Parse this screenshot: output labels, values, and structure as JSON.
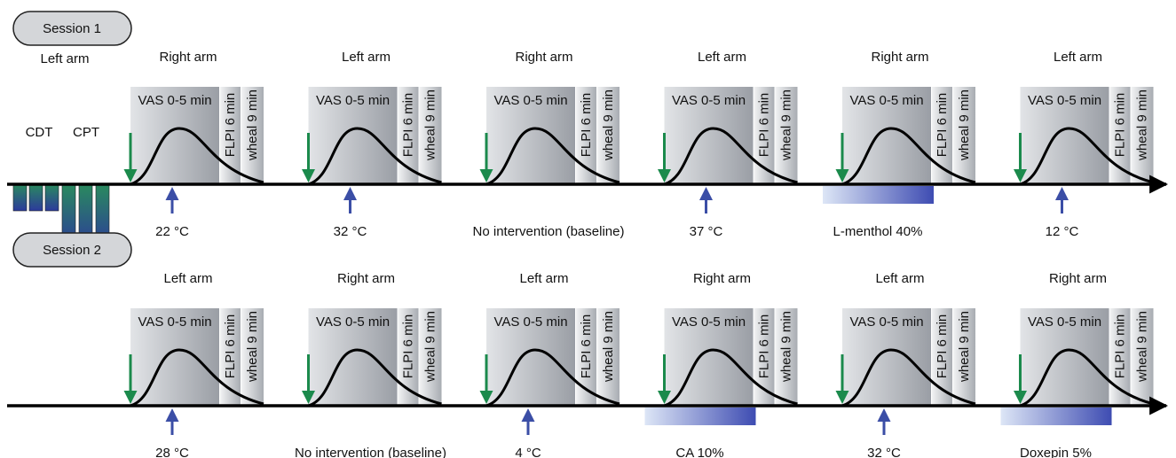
{
  "sessions": [
    {
      "label": "Session 1",
      "pre": {
        "arm": "Left arm",
        "tests": [
          "CDT",
          "CPT"
        ]
      },
      "blocks": [
        {
          "arm": "Right arm",
          "intervention": "22 °C",
          "kind": "arrow"
        },
        {
          "arm": "Left arm",
          "intervention": "32 °C",
          "kind": "arrow"
        },
        {
          "arm": "Right arm",
          "intervention": "No intervention (baseline)",
          "kind": "none"
        },
        {
          "arm": "Left arm",
          "intervention": "37 °C",
          "kind": "arrow"
        },
        {
          "arm": "Right arm",
          "intervention": "L-menthol 40%",
          "kind": "bar"
        },
        {
          "arm": "Left arm",
          "intervention": "12 °C",
          "kind": "arrow"
        }
      ]
    },
    {
      "label": "Session 2",
      "blocks": [
        {
          "arm": "Left arm",
          "intervention": "28 °C",
          "kind": "arrow"
        },
        {
          "arm": "Right arm",
          "intervention": "No intervention (baseline)",
          "kind": "none"
        },
        {
          "arm": "Left arm",
          "intervention": "4 °C",
          "kind": "arrow"
        },
        {
          "arm": "Right arm",
          "intervention": "CA 10%",
          "kind": "bar"
        },
        {
          "arm": "Left arm",
          "intervention": "32 °C",
          "kind": "arrow"
        },
        {
          "arm": "Right arm",
          "intervention": "Doxepin 5%",
          "kind": "bar"
        }
      ]
    }
  ],
  "panel_labels": {
    "vas": "VAS 0-5 min",
    "flpi": "FLPI 6 min",
    "wheal": "wheal 9 min"
  }
}
